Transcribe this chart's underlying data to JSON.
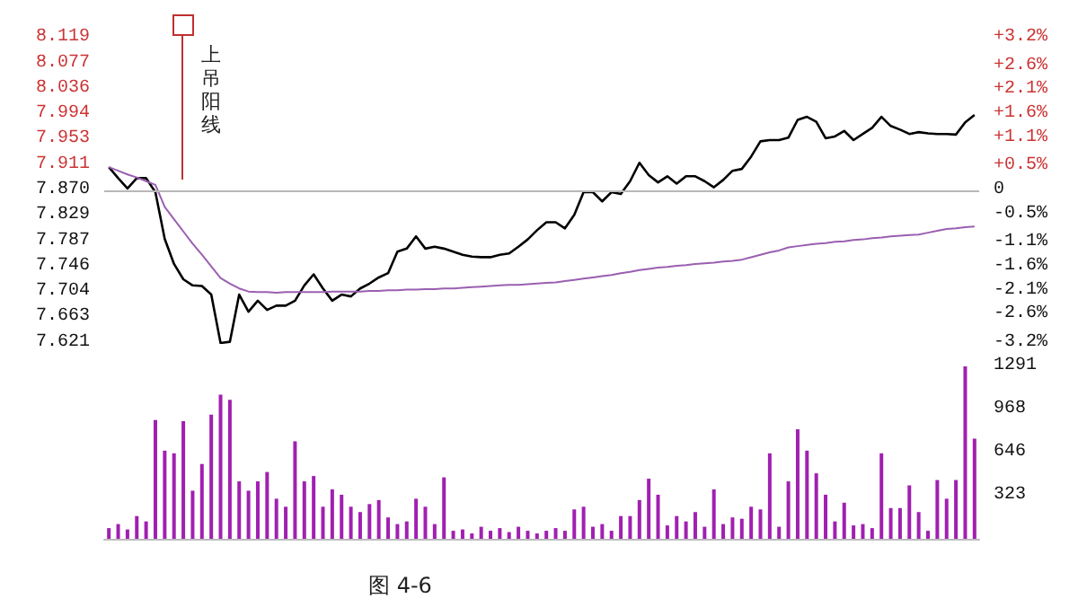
{
  "chart_data": [
    {
      "type": "line",
      "categories": [
        null,
        null,
        null,
        null,
        null,
        null,
        null,
        null,
        null,
        null,
        null,
        null,
        null,
        null,
        null,
        null,
        null,
        null,
        null,
        null,
        null,
        null,
        null,
        null,
        null,
        null,
        null,
        null,
        null,
        null,
        null,
        null,
        null,
        null,
        null,
        null,
        null,
        null,
        null,
        null,
        null,
        null,
        null,
        null,
        null,
        null,
        null,
        null,
        null,
        null,
        null,
        null,
        null,
        null,
        null,
        null,
        null,
        null,
        null,
        null,
        null,
        null,
        null,
        null,
        null,
        null,
        null,
        null,
        null,
        null,
        null,
        null,
        null,
        null,
        null,
        null,
        null,
        null,
        null,
        null,
        null,
        null,
        null,
        null,
        null,
        null,
        null,
        null,
        null,
        null,
        null,
        null,
        null,
        null
      ],
      "series": [
        {
          "color": "#000000",
          "values": [
            7.908,
            7.89,
            7.873,
            7.89,
            7.89,
            7.867,
            7.791,
            7.75,
            7.725,
            7.715,
            7.714,
            7.7,
            7.621,
            7.623,
            7.7,
            7.672,
            7.69,
            7.675,
            7.682,
            7.682,
            7.69,
            7.715,
            7.733,
            7.71,
            7.69,
            7.7,
            7.697,
            7.71,
            7.718,
            7.728,
            7.735,
            7.77,
            7.775,
            7.795,
            7.775,
            7.778,
            7.775,
            7.77,
            7.765,
            7.762,
            7.761,
            7.761,
            7.765,
            7.767,
            7.778,
            7.79,
            7.805,
            7.818,
            7.818,
            7.808,
            7.83,
            7.867,
            7.867,
            7.852,
            7.867,
            7.864,
            7.885,
            7.915,
            7.895,
            7.883,
            7.893,
            7.881,
            7.893,
            7.893,
            7.885,
            7.875,
            7.887,
            7.902,
            7.905,
            7.925,
            7.95,
            7.952,
            7.952,
            7.956,
            7.985,
            7.99,
            7.982,
            7.955,
            7.958,
            7.967,
            7.952,
            7.962,
            7.972,
            7.99,
            7.975,
            7.969,
            7.962,
            7.965,
            7.963,
            7.962,
            7.962,
            7.961,
            7.981,
            7.993
          ]
        },
        {
          "color": "#9a5fb0",
          "values": [
            7.908,
            7.902,
            7.896,
            7.891,
            7.885,
            7.879,
            7.843,
            7.823,
            7.803,
            7.783,
            7.765,
            7.746,
            7.727,
            7.718,
            7.71,
            7.705,
            7.704,
            7.704,
            7.703,
            7.704,
            7.704,
            7.704,
            7.704,
            7.704,
            7.705,
            7.705,
            7.705,
            7.705,
            7.706,
            7.706,
            7.707,
            7.707,
            7.708,
            7.708,
            7.709,
            7.709,
            7.71,
            7.71,
            7.711,
            7.712,
            7.713,
            7.714,
            7.715,
            7.716,
            7.716,
            7.717,
            7.718,
            7.719,
            7.72,
            7.722,
            7.724,
            7.726,
            7.728,
            7.73,
            7.732,
            7.735,
            7.737,
            7.74,
            7.742,
            7.744,
            7.745,
            7.747,
            7.748,
            7.75,
            7.751,
            7.752,
            7.754,
            7.755,
            7.757,
            7.761,
            7.765,
            7.769,
            7.772,
            7.777,
            7.779,
            7.781,
            7.783,
            7.784,
            7.786,
            7.787,
            7.789,
            7.79,
            7.792,
            7.793,
            7.795,
            7.796,
            7.797,
            7.798,
            7.801,
            7.804,
            7.807,
            7.808,
            7.81,
            7.811
          ]
        }
      ],
      "ylim": [
        7.621,
        8.119
      ],
      "yticks": [
        8.119,
        8.077,
        8.036,
        7.994,
        7.953,
        7.911,
        {
          "value": 7.87,
          "label": "7.870"
        },
        7.829,
        7.787,
        7.746,
        7.704,
        7.663,
        7.621
      ],
      "y2lim": [
        -3.2,
        3.2
      ],
      "y2ticks": [
        {
          "value": 3.2,
          "label": "+3.2%"
        },
        {
          "value": 2.6,
          "label": "+2.6%"
        },
        {
          "value": 2.1,
          "label": "+2.1%"
        },
        {
          "value": 1.6,
          "label": "+1.6%"
        },
        {
          "value": 1.1,
          "label": "+1.1%"
        },
        {
          "value": 0.5,
          "label": "+0.5%"
        },
        0,
        {
          "value": -0.5,
          "label": "-0.5%"
        },
        {
          "value": -1.1,
          "label": "-1.1%"
        },
        {
          "value": -1.6,
          "label": "-1.6%"
        },
        {
          "value": -2.1,
          "label": "-2.1%"
        },
        {
          "value": -2.6,
          "label": "-2.6%"
        },
        {
          "value": -3.2,
          "label": "-3.2%"
        }
      ],
      "ref_lines": [
        {
          "axis": "y",
          "value": 7.87,
          "color": "#b8b8b8"
        }
      ],
      "annotations": [
        "上吊阳线"
      ],
      "tick_labels": "y"
    },
    {
      "type": "bar",
      "categories": [
        null,
        null,
        null,
        null,
        null,
        null,
        null,
        null,
        null,
        null,
        null,
        null,
        null,
        null,
        null,
        null,
        null,
        null,
        null,
        null,
        null,
        null,
        null,
        null,
        null,
        null,
        null,
        null,
        null,
        null,
        null,
        null,
        null,
        null,
        null,
        null,
        null,
        null,
        null,
        null,
        null,
        null,
        null,
        null,
        null,
        null,
        null,
        null,
        null,
        null,
        null,
        null,
        null,
        null,
        null,
        null,
        null,
        null,
        null,
        null,
        null,
        null,
        null,
        null,
        null,
        null,
        null,
        null,
        null,
        null,
        null,
        null,
        null,
        null,
        null,
        null,
        null,
        null,
        null,
        null,
        null,
        null,
        null,
        null,
        null,
        null,
        null,
        null,
        null,
        null,
        null,
        null,
        null,
        null
      ],
      "values": [
        80,
        110,
        70,
        170,
        130,
        890,
        660,
        640,
        880,
        360,
        560,
        930,
        1080,
        1040,
        430,
        360,
        430,
        500,
        300,
        240,
        730,
        430,
        470,
        240,
        370,
        330,
        240,
        200,
        260,
        290,
        160,
        110,
        130,
        300,
        240,
        110,
        460,
        60,
        70,
        40,
        90,
        60,
        80,
        50,
        90,
        60,
        40,
        60,
        80,
        60,
        220,
        240,
        90,
        110,
        60,
        170,
        170,
        290,
        450,
        330,
        100,
        170,
        130,
        200,
        90,
        370,
        110,
        160,
        150,
        240,
        220,
        640,
        90,
        430,
        820,
        660,
        490,
        330,
        130,
        270,
        100,
        110,
        80,
        640,
        230,
        230,
        400,
        200,
        60,
        440,
        300,
        440,
        1291,
        750
      ],
      "color": "#a020b0",
      "ylim": [
        0,
        1291
      ],
      "yticks": [
        323,
        646,
        968,
        1291
      ],
      "annotations": [
        "图 4-6"
      ],
      "tick_labels": "y"
    }
  ]
}
